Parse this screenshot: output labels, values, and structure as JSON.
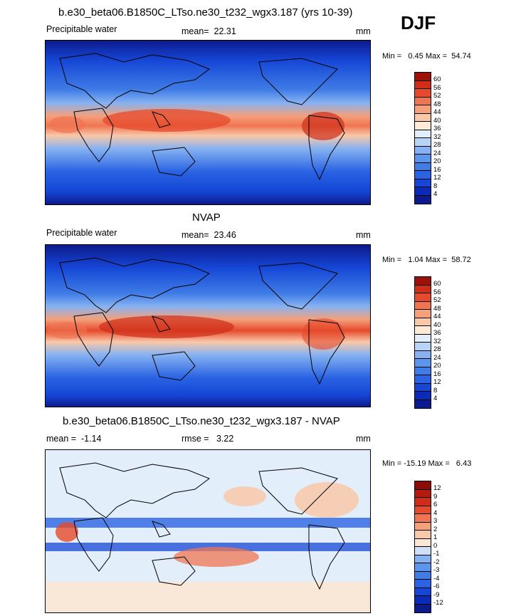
{
  "header": {
    "title": "b.e30_beta06.B1850C_LTso.ne30_t232_wgx3.187 (yrs 10-39)",
    "season": "DJF"
  },
  "panels": [
    {
      "id": "model",
      "title": "",
      "left_label": "Precipitable water",
      "stat_label": "mean=  22.31",
      "units": "mm",
      "minmax": "Min =   0.45 Max =  54.74"
    },
    {
      "id": "obs",
      "title": "NVAP",
      "left_label": "Precipitable water",
      "stat_label": "mean=  23.46",
      "units": "mm",
      "minmax": "Min =   1.04 Max =  58.72"
    },
    {
      "id": "diff",
      "title": "b.e30_beta06.B1850C_LTso.ne30_t232_wgx3.187 - NVAP",
      "left_label": "mean =  -1.14",
      "stat_label": "rmse =   3.22",
      "units": "mm",
      "minmax": "Min = -15.19 Max =   6.43"
    }
  ],
  "chart_data": [
    {
      "type": "heatmap",
      "title": "b.e30_beta06.B1850C_LTso.ne30_t232_wgx3.187 (yrs 10-39)",
      "variable": "Precipitable water",
      "units": "mm",
      "mean": 22.31,
      "min": 0.45,
      "max": 54.74,
      "colorbar_levels": [
        4,
        8,
        12,
        16,
        20,
        24,
        28,
        32,
        36,
        40,
        44,
        48,
        52,
        56,
        60
      ],
      "colors": [
        "#0d1a8c",
        "#0a2ab8",
        "#1546d6",
        "#2a63e3",
        "#3f7ce6",
        "#5b95ec",
        "#86b2f1",
        "#b7d3f6",
        "#e3eefb",
        "#fdebd8",
        "#f9c8a9",
        "#f4a07b",
        "#ef7552",
        "#e64a2c",
        "#cf2d18",
        "#9e1108"
      ]
    },
    {
      "type": "heatmap",
      "title": "NVAP",
      "variable": "Precipitable water",
      "units": "mm",
      "mean": 23.46,
      "min": 1.04,
      "max": 58.72,
      "colorbar_levels": [
        4,
        8,
        12,
        16,
        20,
        24,
        28,
        32,
        36,
        40,
        44,
        48,
        52,
        56,
        60
      ],
      "colors": [
        "#0d1a8c",
        "#0a2ab8",
        "#1546d6",
        "#2a63e3",
        "#3f7ce6",
        "#5b95ec",
        "#86b2f1",
        "#b7d3f6",
        "#e3eefb",
        "#fdebd8",
        "#f9c8a9",
        "#f4a07b",
        "#ef7552",
        "#e64a2c",
        "#cf2d18",
        "#9e1108"
      ]
    },
    {
      "type": "heatmap",
      "title": "b.e30_beta06.B1850C_LTso.ne30_t232_wgx3.187 - NVAP",
      "variable": "Precipitable water",
      "units": "mm",
      "mean": -1.14,
      "rmse": 3.22,
      "min": -15.19,
      "max": 6.43,
      "colorbar_levels": [
        -12,
        -9,
        -6,
        -4,
        -3,
        -2,
        -1,
        0,
        1,
        2,
        3,
        4,
        6,
        9,
        12
      ],
      "colors": [
        "#0d1a8c",
        "#0a2ab8",
        "#1546d6",
        "#2a63e3",
        "#3f7ce6",
        "#5b95ec",
        "#86b2f1",
        "#cfe0f8",
        "#fbe5d3",
        "#f9c8a9",
        "#f4a07b",
        "#ef7552",
        "#e64a2c",
        "#cf2d18",
        "#b41b0e",
        "#8c0c05"
      ]
    }
  ]
}
